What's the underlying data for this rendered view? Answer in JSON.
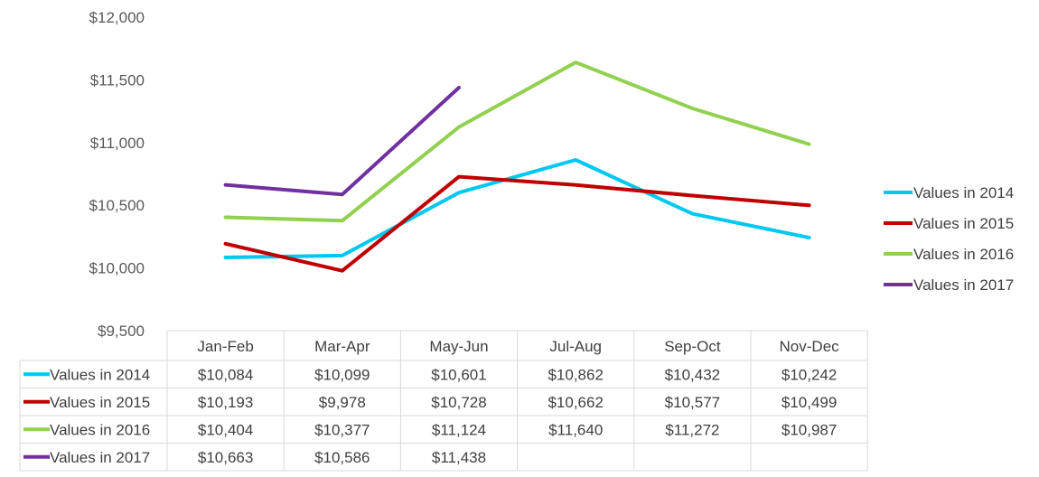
{
  "chart_data": {
    "type": "line",
    "categories": [
      "Jan-Feb",
      "Mar-Apr",
      "May-Jun",
      "Jul-Aug",
      "Sep-Oct",
      "Nov-Dec"
    ],
    "y_ticks": [
      "$9,500",
      "$10,000",
      "$10,500",
      "$11,000",
      "$11,500",
      "$12,000"
    ],
    "ylim": [
      9500,
      12000
    ],
    "grid": false,
    "legend_position": "right",
    "series": [
      {
        "name": "Values in 2014",
        "color": "#00c8f0",
        "values": [
          10084,
          10099,
          10601,
          10862,
          10432,
          10242
        ],
        "labels": [
          "$10,084",
          "$10,099",
          "$10,601",
          "$10,862",
          "$10,432",
          "$10,242"
        ]
      },
      {
        "name": "Values in 2015",
        "color": "#c00000",
        "values": [
          10193,
          9978,
          10728,
          10662,
          10577,
          10499
        ],
        "labels": [
          "$10,193",
          "$9,978",
          "$10,728",
          "$10,662",
          "$10,577",
          "$10,499"
        ]
      },
      {
        "name": "Values in 2016",
        "color": "#92d050",
        "values": [
          10404,
          10377,
          11124,
          11640,
          11272,
          10987
        ],
        "labels": [
          "$10,404",
          "$10,377",
          "$11,124",
          "$11,640",
          "$11,272",
          "$10,987"
        ]
      },
      {
        "name": "Values in 2017",
        "color": "#7030a0",
        "values": [
          10663,
          10586,
          11438,
          null,
          null,
          null
        ],
        "labels": [
          "$10,663",
          "$10,586",
          "$11,438",
          "",
          "",
          ""
        ]
      }
    ]
  }
}
